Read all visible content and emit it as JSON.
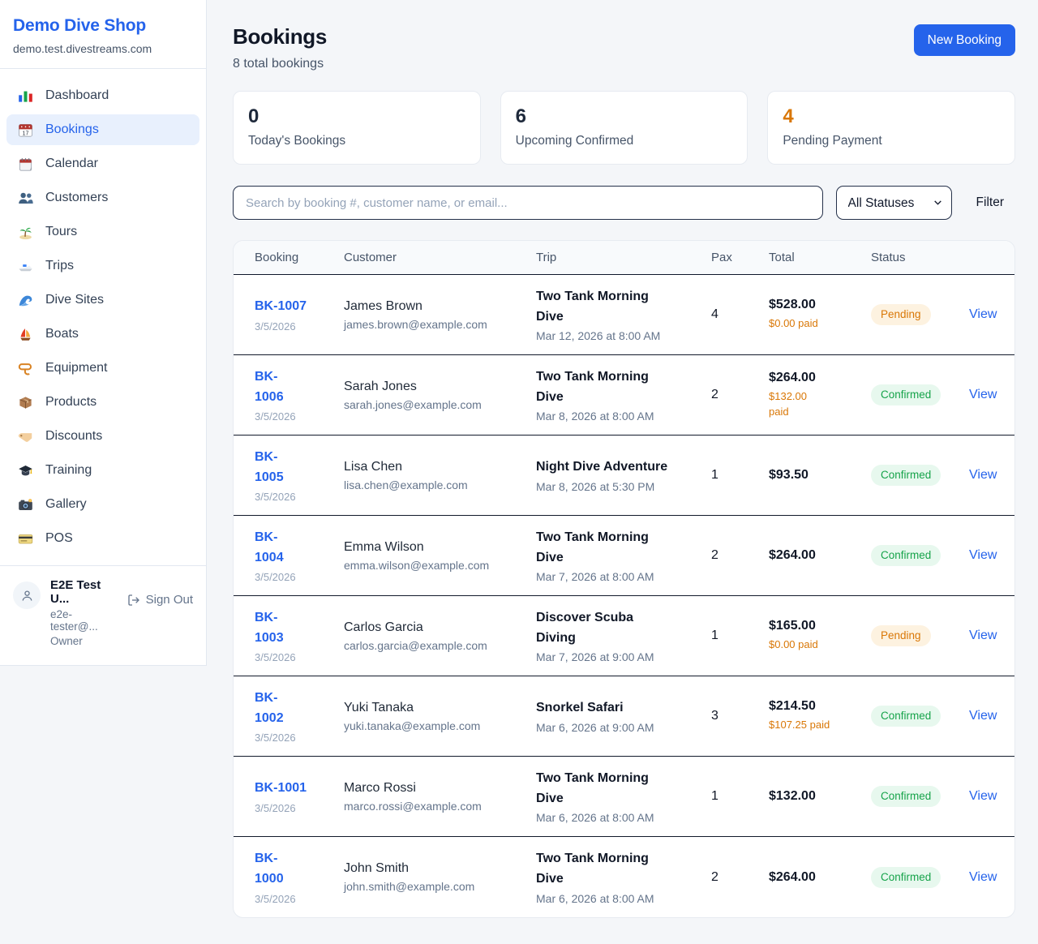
{
  "colors": {
    "accent": "#2563eb",
    "pending_orange": "#d97706",
    "confirmed_green": "#16a34a"
  },
  "sidebar": {
    "brand": {
      "title": "Demo Dive Shop",
      "domain": "demo.test.divestreams.com"
    },
    "nav": [
      {
        "label": "Dashboard",
        "icon": "bar-chart-icon",
        "active": false
      },
      {
        "label": "Bookings",
        "icon": "calendar-date-icon",
        "active": true
      },
      {
        "label": "Calendar",
        "icon": "calendar-pad-icon",
        "active": false
      },
      {
        "label": "Customers",
        "icon": "people-icon",
        "active": false
      },
      {
        "label": "Tours",
        "icon": "island-icon",
        "active": false
      },
      {
        "label": "Trips",
        "icon": "speedboat-icon",
        "active": false
      },
      {
        "label": "Dive Sites",
        "icon": "wave-icon",
        "active": false
      },
      {
        "label": "Boats",
        "icon": "sailboat-icon",
        "active": false
      },
      {
        "label": "Equipment",
        "icon": "dive-mask-icon",
        "active": false
      },
      {
        "label": "Products",
        "icon": "package-icon",
        "active": false
      },
      {
        "label": "Discounts",
        "icon": "tag-icon",
        "active": false
      },
      {
        "label": "Training",
        "icon": "graduation-cap-icon",
        "active": false
      },
      {
        "label": "Gallery",
        "icon": "camera-icon",
        "active": false
      },
      {
        "label": "POS",
        "icon": "credit-card-icon",
        "active": false
      }
    ],
    "user": {
      "name": "E2E Test U...",
      "email": "e2e-tester@...",
      "role": "Owner",
      "signout_label": "Sign Out"
    }
  },
  "header": {
    "title": "Bookings",
    "subtitle": "8 total bookings",
    "new_booking_label": "New Booking"
  },
  "stats": [
    {
      "value": "0",
      "label": "Today's Bookings"
    },
    {
      "value": "6",
      "label": "Upcoming Confirmed"
    },
    {
      "value": "4",
      "label": "Pending Payment"
    }
  ],
  "controls": {
    "search_placeholder": "Search by booking #, customer name, or email...",
    "status_filter_value": "All Statuses",
    "filter_label": "Filter"
  },
  "table": {
    "columns": [
      "Booking",
      "Customer",
      "Trip",
      "Pax",
      "Total",
      "Status"
    ],
    "view_label": "View",
    "rows": [
      {
        "id": "BK-1007",
        "date": "3/5/2026",
        "customer": "James Brown",
        "email": "james.brown@example.com",
        "trip": "Two Tank Morning Dive",
        "trip_datetime": "Mar 12, 2026 at 8:00 AM",
        "pax": "4",
        "total": "$528.00",
        "paid": "$0.00 paid",
        "status": "Pending"
      },
      {
        "id": "BK-1006",
        "date": "3/5/2026",
        "customer": "Sarah Jones",
        "email": "sarah.jones@example.com",
        "trip": "Two Tank Morning Dive",
        "trip_datetime": "Mar 8, 2026 at 8:00 AM",
        "pax": "2",
        "total": "$264.00",
        "paid": "$132.00 paid",
        "status": "Confirmed"
      },
      {
        "id": "BK-1005",
        "date": "3/5/2026",
        "customer": "Lisa Chen",
        "email": "lisa.chen@example.com",
        "trip": "Night Dive Adventure",
        "trip_datetime": "Mar 8, 2026 at 5:30 PM",
        "pax": "1",
        "total": "$93.50",
        "paid": null,
        "status": "Confirmed"
      },
      {
        "id": "BK-1004",
        "date": "3/5/2026",
        "customer": "Emma Wilson",
        "email": "emma.wilson@example.com",
        "trip": "Two Tank Morning Dive",
        "trip_datetime": "Mar 7, 2026 at 8:00 AM",
        "pax": "2",
        "total": "$264.00",
        "paid": null,
        "status": "Confirmed"
      },
      {
        "id": "BK-1003",
        "date": "3/5/2026",
        "customer": "Carlos Garcia",
        "email": "carlos.garcia@example.com",
        "trip": "Discover Scuba Diving",
        "trip_datetime": "Mar 7, 2026 at 9:00 AM",
        "pax": "1",
        "total": "$165.00",
        "paid": "$0.00 paid",
        "status": "Pending"
      },
      {
        "id": "BK-1002",
        "date": "3/5/2026",
        "customer": "Yuki Tanaka",
        "email": "yuki.tanaka@example.com",
        "trip": "Snorkel Safari",
        "trip_datetime": "Mar 6, 2026 at 9:00 AM",
        "pax": "3",
        "total": "$214.50",
        "paid": "$107.25 paid",
        "status": "Confirmed"
      },
      {
        "id": "BK-1001",
        "date": "3/5/2026",
        "customer": "Marco Rossi",
        "email": "marco.rossi@example.com",
        "trip": "Two Tank Morning Dive",
        "trip_datetime": "Mar 6, 2026 at 8:00 AM",
        "pax": "1",
        "total": "$132.00",
        "paid": null,
        "status": "Confirmed"
      },
      {
        "id": "BK-1000",
        "date": "3/5/2026",
        "customer": "John Smith",
        "email": "john.smith@example.com",
        "trip": "Two Tank Morning Dive",
        "trip_datetime": "Mar 6, 2026 at 8:00 AM",
        "pax": "2",
        "total": "$264.00",
        "paid": null,
        "status": "Confirmed"
      }
    ]
  }
}
